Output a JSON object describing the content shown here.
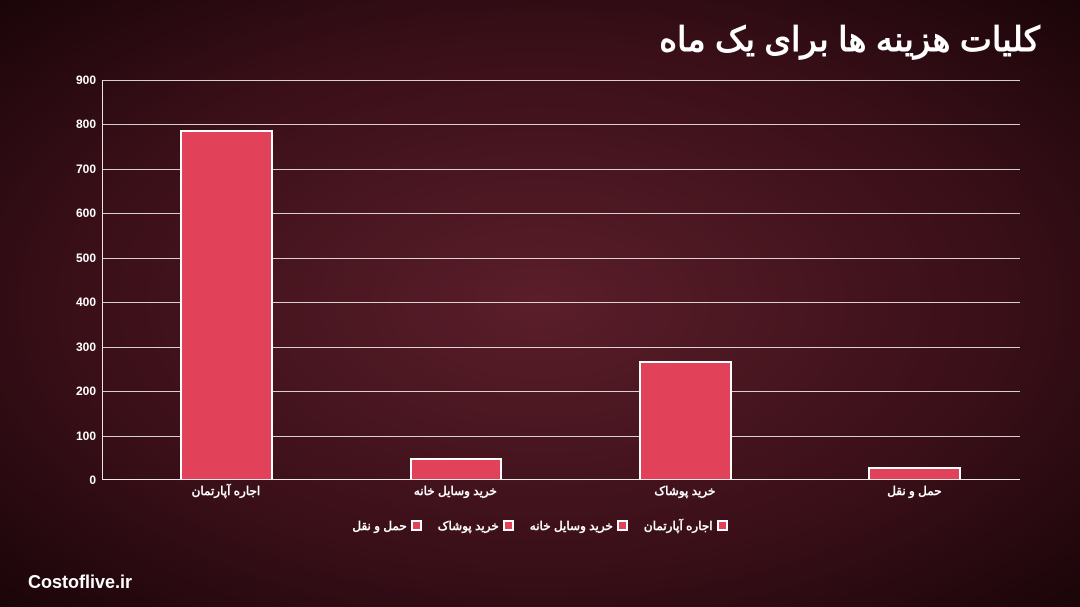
{
  "chart": {
    "type": "bar",
    "title": "کلیات هزینه ها برای یک ماه",
    "title_fontsize": 34,
    "title_color": "#ffffff",
    "categories": [
      "اجاره آپارتمان",
      "خرید وسایل خانه",
      "خرید پوشاک",
      "حمل و نقل"
    ],
    "values": [
      785,
      48,
      265,
      28
    ],
    "bar_color": "#e2415a",
    "bar_border_color": "#ffffff",
    "bar_width": 0.44,
    "ylim": [
      0,
      900
    ],
    "ytick_step": 100,
    "yticks": [
      0,
      100,
      200,
      300,
      400,
      500,
      600,
      700,
      800,
      900
    ],
    "axis_color": "#ffffff",
    "grid_color": "rgba(255,255,255,0.8)",
    "label_fontsize": 12,
    "label_color": "#ffffff",
    "background": "radial-gradient dark maroon",
    "legend_items": [
      "اجاره آپارتمان",
      "خرید وسایل خانه",
      "خرید پوشاک",
      "حمل و نقل"
    ],
    "legend_swatch_color": "#e2415a"
  },
  "watermark": "Costoflive.ir"
}
